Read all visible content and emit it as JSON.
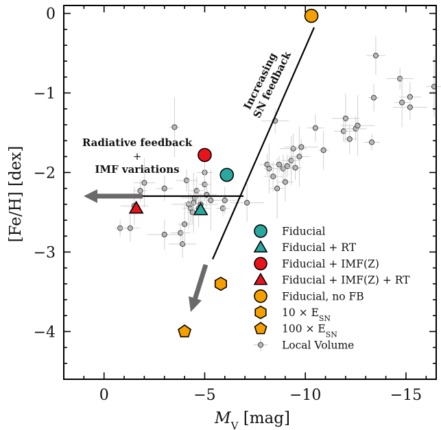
{
  "chart_data": {
    "type": "scatter",
    "title": "",
    "xlabel_main": "M",
    "xlabel_sub": "V",
    "xlabel_unit": " [mag]",
    "ylabel": "[Fe/H] [dex]",
    "xlim": [
      2.0,
      -16.5
    ],
    "ylim": [
      -4.6,
      0.1
    ],
    "x_ticks": [
      0,
      -5,
      -10,
      -15
    ],
    "x_tick_labels": [
      "0",
      "−5",
      "−10",
      "−15"
    ],
    "y_ticks": [
      0,
      -1,
      -2,
      -3,
      -4
    ],
    "y_tick_labels": [
      "0",
      "−1",
      "−2",
      "−3",
      "−4"
    ],
    "legend_position": "lower-right",
    "series": [
      {
        "name": "Fiducial",
        "marker": "circle",
        "color": "#2aa89f",
        "points": [
          {
            "x": -6.1,
            "y": -2.03
          }
        ]
      },
      {
        "name": "Fiducial + RT",
        "marker": "triangle",
        "color": "#2aa89f",
        "points": [
          {
            "x": -4.8,
            "y": -2.47
          }
        ]
      },
      {
        "name": "Fiducial + IMF(Z)",
        "marker": "circle",
        "color": "#e8141c",
        "points": [
          {
            "x": -5.0,
            "y": -1.78
          }
        ]
      },
      {
        "name": "Fiducial + IMF(Z) + RT",
        "marker": "triangle",
        "color": "#e8141c",
        "points": [
          {
            "x": -1.6,
            "y": -2.45
          }
        ]
      },
      {
        "name": "Fiducial,  no FB",
        "marker": "circle",
        "color": "#f5a000",
        "points": [
          {
            "x": -10.3,
            "y": -0.03
          }
        ]
      },
      {
        "name": "10 × E",
        "sub": "SN",
        "marker": "hexagon",
        "color": "#f5a000",
        "points": [
          {
            "x": -5.8,
            "y": -3.4
          }
        ]
      },
      {
        "name": "100 × E",
        "sub": "SN",
        "marker": "pentagon",
        "color": "#f5a000",
        "points": [
          {
            "x": -4.0,
            "y": -4.0
          }
        ]
      },
      {
        "name": "Local Volume",
        "marker": "small-circle-errorbar",
        "color": "#b4b4b4",
        "points": [
          {
            "x": -0.8,
            "y": -2.7
          },
          {
            "x": -1.3,
            "y": -2.7
          },
          {
            "x": -1.5,
            "y": -2.42
          },
          {
            "x": -1.8,
            "y": -2.23
          },
          {
            "x": -2.0,
            "y": -2.13
          },
          {
            "x": -3.0,
            "y": -2.78
          },
          {
            "x": -3.0,
            "y": -2.2
          },
          {
            "x": -3.5,
            "y": -1.43
          },
          {
            "x": -3.8,
            "y": -2.76
          },
          {
            "x": -3.9,
            "y": -2.9
          },
          {
            "x": -4.0,
            "y": -2.65
          },
          {
            "x": -4.1,
            "y": -2.1
          },
          {
            "x": -4.2,
            "y": -2.4
          },
          {
            "x": -4.3,
            "y": -2.45
          },
          {
            "x": -4.4,
            "y": -2.5
          },
          {
            "x": -4.45,
            "y": -2.38
          },
          {
            "x": -4.5,
            "y": -2.32
          },
          {
            "x": -4.6,
            "y": -2.23
          },
          {
            "x": -4.7,
            "y": -2.45
          },
          {
            "x": -4.8,
            "y": -2.4
          },
          {
            "x": -5.0,
            "y": -2.0
          },
          {
            "x": -5.0,
            "y": -2.15
          },
          {
            "x": -5.1,
            "y": -2.28
          },
          {
            "x": -5.3,
            "y": -2.35
          },
          {
            "x": -5.9,
            "y": -2.45
          },
          {
            "x": -6.0,
            "y": -2.35
          },
          {
            "x": -7.1,
            "y": -2.38
          },
          {
            "x": -8.1,
            "y": -1.9
          },
          {
            "x": -8.2,
            "y": -1.95
          },
          {
            "x": -8.4,
            "y": -2.05
          },
          {
            "x": -8.5,
            "y": -1.35
          },
          {
            "x": -8.6,
            "y": -2.2
          },
          {
            "x": -8.7,
            "y": -1.9
          },
          {
            "x": -8.9,
            "y": -1.95
          },
          {
            "x": -9.0,
            "y": -2.12
          },
          {
            "x": -9.1,
            "y": -1.92
          },
          {
            "x": -9.3,
            "y": -1.85
          },
          {
            "x": -9.4,
            "y": -1.7
          },
          {
            "x": -9.5,
            "y": -1.94
          },
          {
            "x": -9.7,
            "y": -1.8
          },
          {
            "x": -9.8,
            "y": -1.68
          },
          {
            "x": -10.5,
            "y": -1.44
          },
          {
            "x": -10.9,
            "y": -1.72
          },
          {
            "x": -11.9,
            "y": -1.48
          },
          {
            "x": -12.0,
            "y": -1.32
          },
          {
            "x": -12.2,
            "y": -1.58
          },
          {
            "x": -12.5,
            "y": -1.45
          },
          {
            "x": -12.6,
            "y": -1.41
          },
          {
            "x": -13.3,
            "y": -1.62
          },
          {
            "x": -13.4,
            "y": -1.06
          },
          {
            "x": -13.5,
            "y": -0.53
          },
          {
            "x": -14.7,
            "y": -0.82
          },
          {
            "x": -14.8,
            "y": -1.12
          },
          {
            "x": -15.2,
            "y": -1.05
          },
          {
            "x": -15.2,
            "y": -1.18
          },
          {
            "x": -16.4,
            "y": -0.92
          }
        ]
      }
    ],
    "annotations": [
      {
        "id": "sn",
        "line1": "Increasing",
        "line2": "SN feedback"
      },
      {
        "id": "rad",
        "line1": "Radiative feedback",
        "line2": "+",
        "line3": "IMF variations"
      }
    ]
  }
}
